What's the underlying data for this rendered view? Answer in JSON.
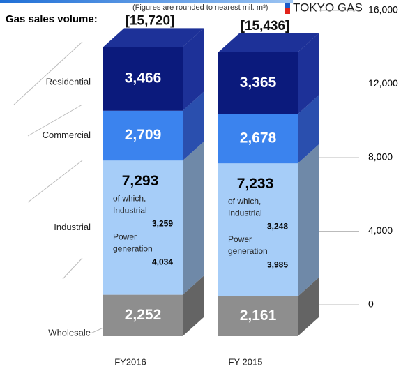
{
  "chart_data": {
    "type": "stacked-bar-3d",
    "title": "Gas sales volume:",
    "subtitle": "(Figures are rounded to nearest mil. m³)",
    "logo": "TOKYO GAS",
    "categories": [
      "FY2016",
      "FY 2015"
    ],
    "series": [
      {
        "name": "Wholesale",
        "color": "#8e8e8e",
        "side_color": "#646464",
        "label_color": "#ffffff",
        "values": [
          2252,
          2161
        ],
        "value_labels": [
          "2,252",
          "2,161"
        ]
      },
      {
        "name": "Industrial",
        "color": "#a6cdf8",
        "side_color": "#6f89a8",
        "label_color": "#000000",
        "values": [
          7293,
          7233
        ],
        "value_labels": [
          "7,293",
          "7,233"
        ],
        "breakdown_prefix": "of which,",
        "breakdown": [
          {
            "name": "Industrial",
            "values": [
              3259,
              3248
            ],
            "value_labels": [
              "3,259",
              "3,248"
            ]
          },
          {
            "name": "Power generation",
            "values": [
              4034,
              3985
            ],
            "value_labels": [
              "4,034",
              "3,985"
            ]
          }
        ]
      },
      {
        "name": "Commercial",
        "color": "#3b83ee",
        "side_color": "#2a4fae",
        "label_color": "#ffffff",
        "values": [
          2709,
          2678
        ],
        "value_labels": [
          "2,709",
          "2,678"
        ]
      },
      {
        "name": "Residential",
        "color": "#0b1a7c",
        "side_color": "#1d3198",
        "label_color": "#ffffff",
        "values": [
          3466,
          3365
        ],
        "value_labels": [
          "3,466",
          "3,365"
        ]
      }
    ],
    "totals": [
      15720,
      15436
    ],
    "total_labels": [
      "[15,720]",
      "[15,436]"
    ],
    "ylim": [
      0,
      16000
    ],
    "yticks": [
      {
        "value": 0,
        "label": "0"
      },
      {
        "value": 4000,
        "label": "4,000"
      },
      {
        "value": 8000,
        "label": "8,000"
      },
      {
        "value": 12000,
        "label": "12,000"
      },
      {
        "value": 16000,
        "label": "16,000"
      }
    ],
    "grid": true
  }
}
